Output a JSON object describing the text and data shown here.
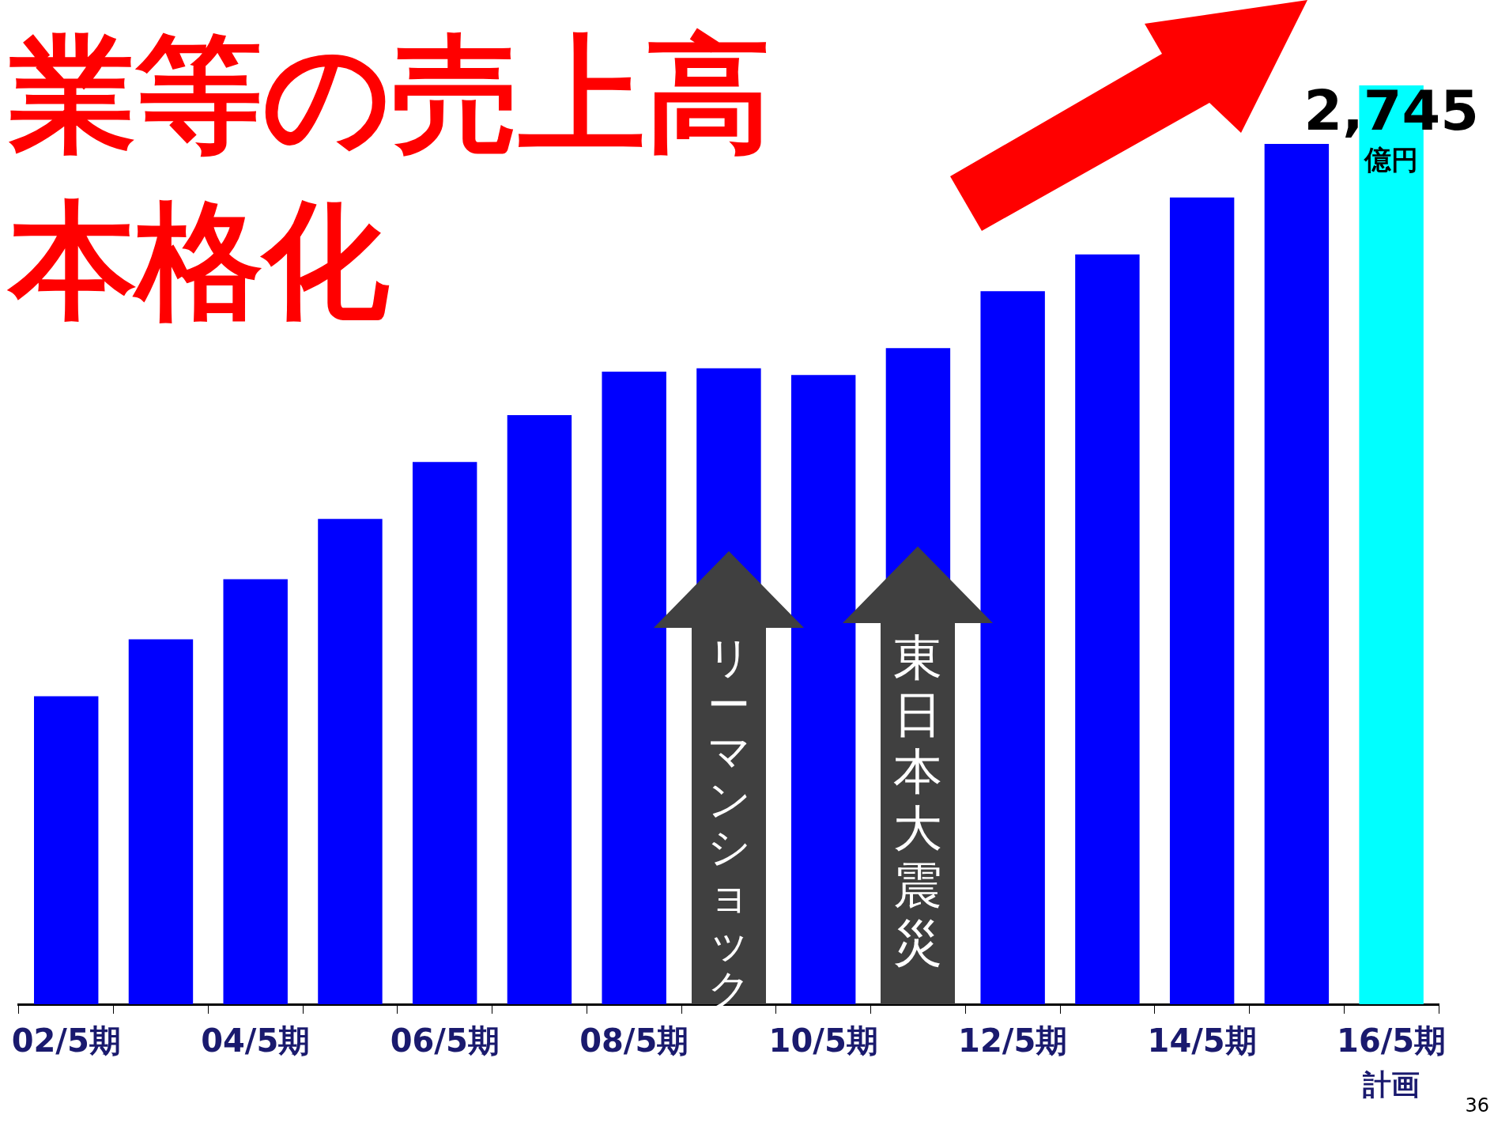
{
  "chart_data": {
    "type": "bar",
    "title": "業等の売上高",
    "subtitle": "本格化",
    "categories": [
      "02/5期",
      null,
      "04/5期",
      null,
      "06/5期",
      null,
      "08/5期",
      null,
      "10/5期",
      null,
      "12/5期",
      null,
      "14/5期",
      null,
      "16/5期"
    ],
    "values": [
      920,
      1090,
      1270,
      1450,
      1620,
      1760,
      1890,
      1900,
      1880,
      1960,
      2130,
      2240,
      2410,
      2570,
      2745
    ],
    "colors": [
      "#0000ff",
      "#0000ff",
      "#0000ff",
      "#0000ff",
      "#0000ff",
      "#0000ff",
      "#0000ff",
      "#0000ff",
      "#0000ff",
      "#0000ff",
      "#0000ff",
      "#0000ff",
      "#0000ff",
      "#0000ff",
      "#00ffff"
    ],
    "value_labels": [
      null,
      null,
      null,
      null,
      null,
      null,
      null,
      null,
      null,
      null,
      null,
      null,
      null,
      null,
      "2,745"
    ],
    "tick_labels": "x",
    "grid": false,
    "legend": false,
    "annotations": [
      "リーマンショック",
      "東日本大震災",
      "億円",
      "計画",
      "36"
    ]
  }
}
